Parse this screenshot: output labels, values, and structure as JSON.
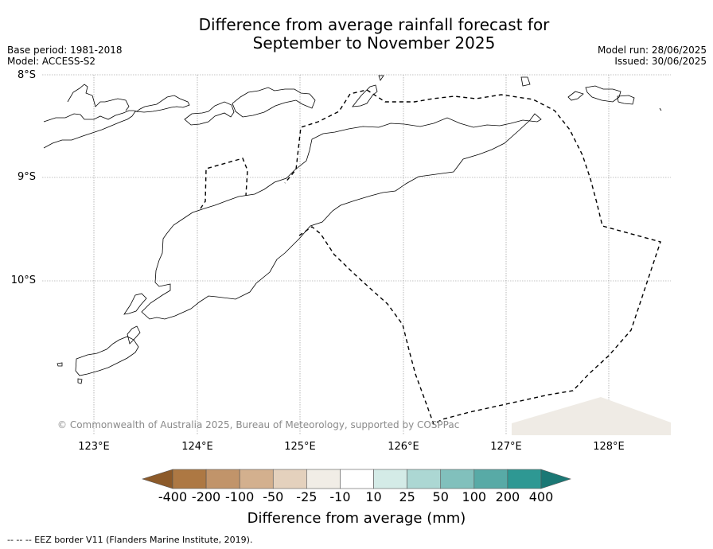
{
  "title_line1": "Difference from average rainfall forecast for",
  "title_line2": "September to November 2025",
  "base_period": "Base period: 1981-2018",
  "model": "Model: ACCESS-S2",
  "model_run": "Model run: 28/06/2025",
  "issued": "Issued: 30/06/2025",
  "latitudes": [
    "8°S",
    "9°S",
    "10°S"
  ],
  "longitudes": [
    "123°E",
    "124°E",
    "125°E",
    "126°E",
    "127°E",
    "128°E"
  ],
  "copyright": "© Commonwealth of Australia 2025, Bureau of Meteorology, supported by COSPPac",
  "colorbar": {
    "labels": [
      "-400",
      "-200",
      "-100",
      "-50",
      "-25",
      "-10",
      "10",
      "25",
      "50",
      "100",
      "200",
      "400"
    ],
    "colors": [
      "#8c5a2a",
      "#ad7843",
      "#c1946a",
      "#d3b08e",
      "#e4d1bd",
      "#f1ede6",
      "#ffffff",
      "#d4ebe7",
      "#acd7d3",
      "#81c0bc",
      "#58aaa6",
      "#2e9893",
      "#1b7875"
    ],
    "title": "Difference from average (mm)"
  },
  "footer": "--  --  -- EEZ border V11 (Flanders Marine Institute, 2019).",
  "legend_line_style": "dashed black (EEZ border)",
  "map_fill_color": "#efebe5"
}
